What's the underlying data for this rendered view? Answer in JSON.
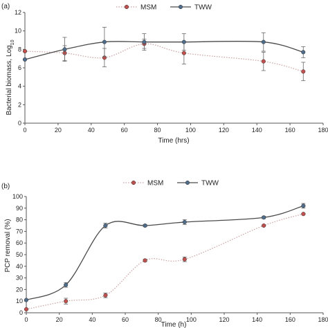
{
  "chart_data": [
    {
      "type": "line",
      "panel_label": "(a)",
      "title": "",
      "xlabel": "Time (hrs)",
      "ylabel": "Bacterial biomass, Log",
      "ylabel_subscript": "10",
      "xlim": [
        0,
        180
      ],
      "ylim": [
        0,
        12
      ],
      "xticks": [
        "0",
        "20",
        "40",
        "60",
        "80",
        "100",
        "120",
        "140",
        "160",
        "180"
      ],
      "yticks": [
        "0",
        "2",
        "4",
        "6",
        "8",
        "10",
        "12"
      ],
      "grid": false,
      "legend_position": "top-center",
      "series": [
        {
          "name": "MSM",
          "color": "#c0504d",
          "line_style": "dotted",
          "x": [
            0,
            24,
            48,
            72,
            96,
            144,
            168
          ],
          "y": [
            7.8,
            7.6,
            7.1,
            8.6,
            7.6,
            6.7,
            5.6
          ],
          "err": [
            0,
            0.8,
            1.0,
            0.5,
            1.2,
            1.0,
            1.0
          ]
        },
        {
          "name": "TWW",
          "color": "#4f6d8a",
          "line_style": "solid",
          "x": [
            0,
            24,
            48,
            72,
            96,
            144,
            168
          ],
          "y": [
            6.9,
            8.0,
            8.8,
            8.8,
            8.8,
            8.8,
            7.7
          ],
          "err": [
            0,
            1.3,
            1.6,
            0.9,
            0.9,
            1.0,
            0.6
          ]
        }
      ]
    },
    {
      "type": "line",
      "panel_label": "(b)",
      "title": "",
      "xlabel": "Time (h)",
      "ylabel": "PCP removal (%)",
      "xlim": [
        0,
        180
      ],
      "ylim": [
        0,
        100
      ],
      "xticks": [
        "0",
        "20",
        "40",
        "60",
        "80",
        "100",
        "120",
        "140",
        "160",
        "180"
      ],
      "yticks": [
        "0",
        "10",
        "20",
        "30",
        "40",
        "50",
        "60",
        "70",
        "80",
        "90",
        "100"
      ],
      "grid": false,
      "legend_position": "top-center",
      "series": [
        {
          "name": "MSM",
          "color": "#c0504d",
          "line_style": "dotted",
          "x": [
            0,
            24,
            48,
            72,
            96,
            144,
            168
          ],
          "y": [
            3,
            10,
            15,
            45,
            46,
            75,
            85
          ],
          "err": [
            0,
            2.5,
            2,
            1,
            2,
            0.5,
            0.5
          ]
        },
        {
          "name": "TWW",
          "color": "#4f6d8a",
          "line_style": "solid",
          "x": [
            0,
            24,
            48,
            72,
            96,
            144,
            168
          ],
          "y": [
            11,
            24,
            75,
            75,
            78,
            82,
            92
          ],
          "err": [
            0,
            2,
            2,
            1,
            2,
            1,
            2
          ]
        }
      ]
    }
  ]
}
